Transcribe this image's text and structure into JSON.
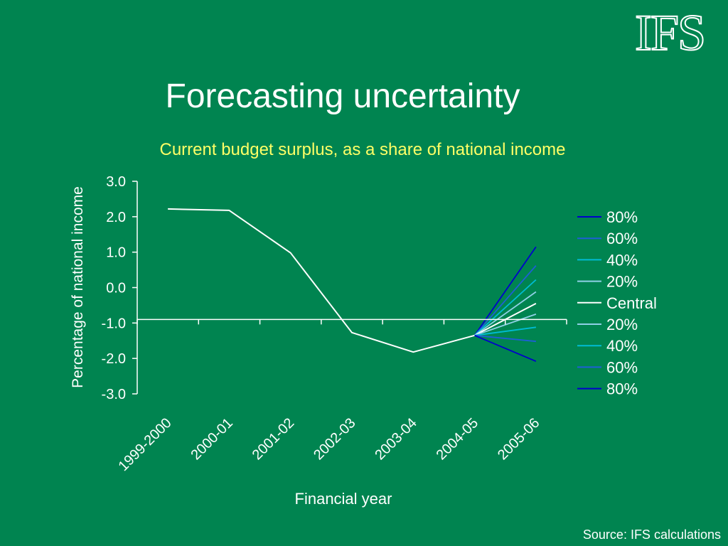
{
  "logo_text": "IFS",
  "title": "Forecasting uncertainty",
  "source": "Source: IFS calculations",
  "colors": {
    "background": "#008450",
    "subtitle": "#ffff66",
    "central": "#ffffff",
    "band80": "#0000cc",
    "band60": "#1e5fd6",
    "band40": "#00bcd4",
    "band20": "#8fd0e6"
  },
  "chart_data": {
    "type": "line",
    "title": "Current budget surplus, as a share of national income",
    "xlabel": "Financial year",
    "ylabel": "Percentage of national income",
    "categories": [
      "1999-2000",
      "2000-01",
      "2001-02",
      "2002-03",
      "2003-04",
      "2004-05",
      "2005-06"
    ],
    "ylim": [
      -3.0,
      3.0
    ],
    "yticks": [
      3.0,
      2.0,
      1.0,
      0.0,
      -1.0,
      -2.0,
      -3.0
    ],
    "ytick_labels": [
      "3.0",
      "2.0",
      "1.0",
      "0.0",
      "-1.0",
      "-2.0",
      "-3.0"
    ],
    "x_axis_crosses_at": -0.9,
    "grid": false,
    "legend_position": "right",
    "series": [
      {
        "name": "80%",
        "values": [
          null,
          null,
          null,
          null,
          null,
          -1.35,
          1.15
        ],
        "color": "#0000cc"
      },
      {
        "name": "60%",
        "values": [
          null,
          null,
          null,
          null,
          null,
          -1.35,
          0.62
        ],
        "color": "#1e5fd6"
      },
      {
        "name": "40%",
        "values": [
          null,
          null,
          null,
          null,
          null,
          -1.35,
          0.22
        ],
        "color": "#00bcd4"
      },
      {
        "name": "20%",
        "values": [
          null,
          null,
          null,
          null,
          null,
          -1.35,
          -0.12
        ],
        "color": "#8fd0e6"
      },
      {
        "name": "Central",
        "values": [
          2.22,
          2.18,
          0.98,
          -1.27,
          -1.82,
          -1.35,
          -0.45
        ],
        "color": "#ffffff"
      },
      {
        "name": "20%",
        "values": [
          null,
          null,
          null,
          null,
          null,
          -1.35,
          -0.75
        ],
        "color": "#8fd0e6"
      },
      {
        "name": "40%",
        "values": [
          null,
          null,
          null,
          null,
          null,
          -1.35,
          -1.12
        ],
        "color": "#00bcd4"
      },
      {
        "name": "60%",
        "values": [
          null,
          null,
          null,
          null,
          null,
          -1.35,
          -1.52
        ],
        "color": "#1e5fd6"
      },
      {
        "name": "80%",
        "values": [
          null,
          null,
          null,
          null,
          null,
          -1.35,
          -2.08
        ],
        "color": "#0000cc"
      }
    ]
  }
}
